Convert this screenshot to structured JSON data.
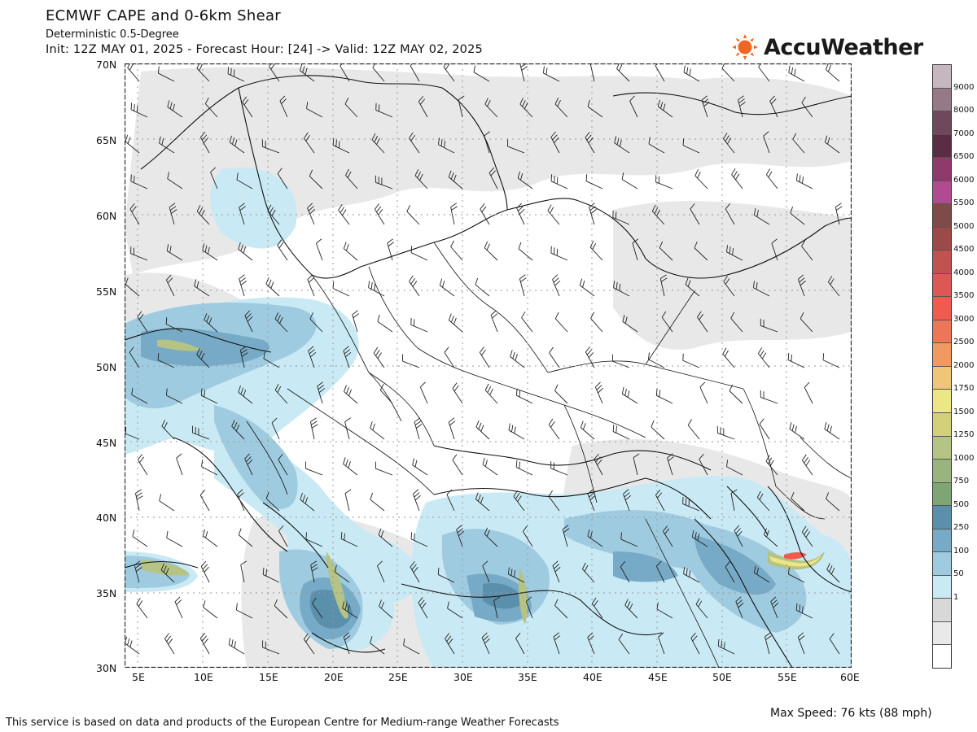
{
  "header": {
    "title": "ECMWF CAPE and 0-6km Shear",
    "subtitle": "Deterministic 0.5-Degree",
    "init_line": "Init: 12Z MAY 01, 2025 - Forecast Hour: [24] -> Valid: 12Z MAY 02, 2025"
  },
  "logo": {
    "text": "AccuWeather",
    "color": "#f26522"
  },
  "map": {
    "lat_labels": [
      "70N",
      "65N",
      "60N",
      "55N",
      "50N",
      "45N",
      "40N",
      "35N",
      "30N"
    ],
    "lon_labels": [
      "5E",
      "10E",
      "15E",
      "20E",
      "25E",
      "30E",
      "35E",
      "40E",
      "45E",
      "50E",
      "55E",
      "60E"
    ],
    "lat_range": [
      30,
      70
    ],
    "lon_range": [
      4,
      60
    ],
    "grid": "dotted"
  },
  "colorbar": {
    "levels": [
      "9000",
      "8000",
      "7000",
      "6500",
      "6000",
      "5500",
      "5000",
      "4500",
      "4000",
      "3500",
      "3000",
      "2500",
      "2000",
      "1750",
      "1500",
      "1250",
      "1000",
      "750",
      "500",
      "250",
      "100",
      "50",
      "1"
    ],
    "colors": [
      "#c6b6bf",
      "#957986",
      "#71475b",
      "#5c2c44",
      "#8e3a6b",
      "#b14b8f",
      "#7e4b48",
      "#9a4b48",
      "#c05250",
      "#dd5853",
      "#f15a4f",
      "#ee7658",
      "#f09a62",
      "#f0c57a",
      "#ece686",
      "#d2d07a",
      "#b5c384",
      "#99b47c",
      "#7ea675",
      "#5b90ad",
      "#76aac6",
      "#9fcbe0",
      "#c9eaf4",
      "#d8d8d8",
      "#e9e9e9",
      "#ffffff"
    ]
  },
  "footer": {
    "left": "This service is based on data and products of the European Centre for Medium-range Weather Forecasts",
    "right": "Max Speed: 76 kts (88 mph)"
  }
}
